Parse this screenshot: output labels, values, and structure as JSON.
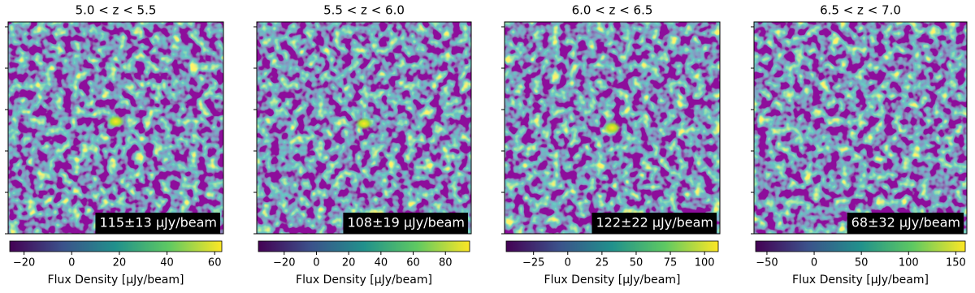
{
  "chart_data": [
    {
      "type": "heatmap",
      "title": "5.0 < z < 5.5",
      "annotation": "115±13 μJy/beam",
      "colorbar_label": "Flux Density [μJy/beam]",
      "clim": [
        -26,
        63
      ],
      "cticks": [
        {
          "value": -20,
          "label": "−20"
        },
        0,
        20,
        40,
        60
      ]
    },
    {
      "type": "heatmap",
      "title": "5.5 < z < 6.0",
      "annotation": "108±19 μJy/beam",
      "colorbar_label": "Flux Density [μJy/beam]",
      "clim": [
        -36,
        95
      ],
      "cticks": [
        {
          "value": -20,
          "label": "−20"
        },
        0,
        20,
        40,
        60,
        80
      ]
    },
    {
      "type": "heatmap",
      "title": "6.0 < z < 6.5",
      "annotation": "122±22 μJy/beam",
      "colorbar_label": "Flux Density [μJy/beam]",
      "clim": [
        -45,
        110
      ],
      "cticks": [
        {
          "value": -25,
          "label": "−25"
        },
        0,
        25,
        50,
        75,
        100
      ]
    },
    {
      "type": "heatmap",
      "title": "6.5 < z < 7.0",
      "annotation": "68±32 μJy/beam",
      "colorbar_label": "Flux Density [μJy/beam]",
      "clim": [
        -62,
        160
      ],
      "cticks": [
        {
          "value": -50,
          "label": "−50"
        },
        0,
        50,
        100,
        150
      ]
    }
  ]
}
